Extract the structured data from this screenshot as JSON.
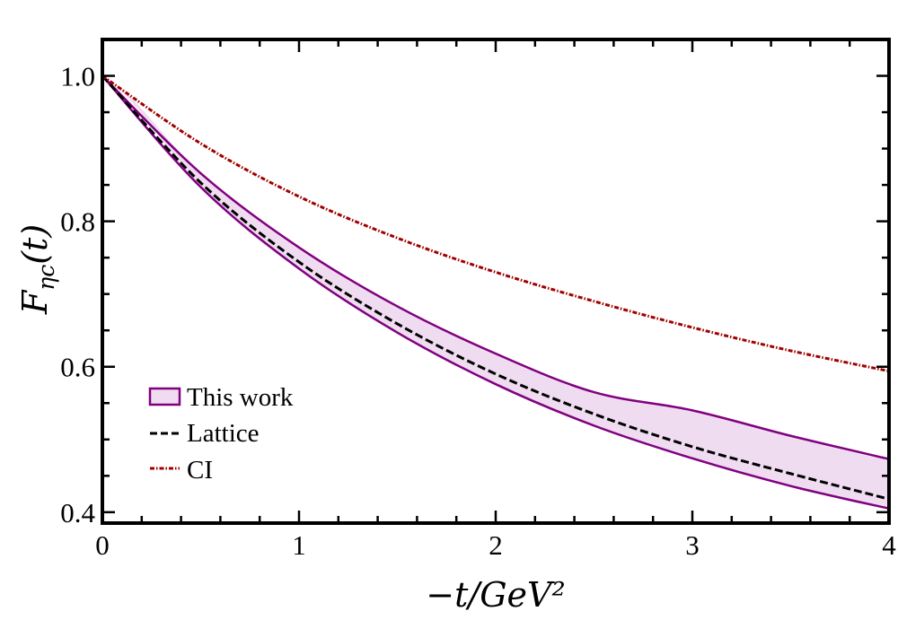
{
  "chart_data": {
    "type": "line",
    "xlabel": "−t/GeV²",
    "ylabel": "F_ηc(t)",
    "xlim": [
      0,
      4
    ],
    "ylim": [
      0.385,
      1.05
    ],
    "x_ticks": [
      "0",
      "1",
      "2",
      "3",
      "4"
    ],
    "y_ticks": [
      "0.4",
      "0.6",
      "0.8",
      "1.0"
    ],
    "grid": false,
    "legend_position": "bottom-left",
    "x": [
      0,
      0.5,
      1,
      1.5,
      2,
      2.5,
      3,
      3.5,
      4
    ],
    "series": [
      {
        "name": "This work",
        "style": "band",
        "color": "#800080",
        "fill": "#f0dcf0",
        "upper": [
          1.0,
          0.866,
          0.764,
          0.683,
          0.618,
          0.565,
          0.54,
          0.505,
          0.473
        ],
        "lower": [
          1.0,
          0.847,
          0.735,
          0.647,
          0.576,
          0.519,
          0.474,
          0.436,
          0.405
        ]
      },
      {
        "name": "Lattice",
        "style": "dashed",
        "color": "#000000",
        "values": [
          1.0,
          0.853,
          0.744,
          0.659,
          0.59,
          0.535,
          0.49,
          0.453,
          0.418
        ]
      },
      {
        "name": "CI",
        "style": "dotdash",
        "color": "#a00000",
        "values": [
          1.0,
          0.907,
          0.834,
          0.777,
          0.73,
          0.69,
          0.654,
          0.622,
          0.594
        ]
      }
    ]
  }
}
